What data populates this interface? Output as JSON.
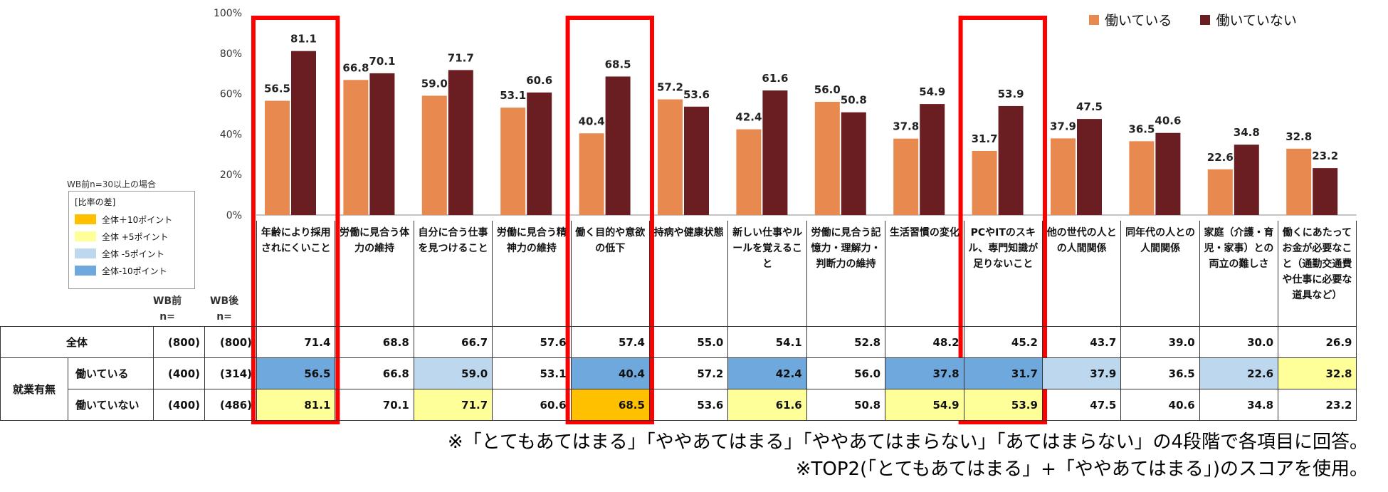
{
  "chart_data": {
    "type": "bar",
    "ylim": [
      0,
      100
    ],
    "yticks": [
      "0%",
      "20%",
      "40%",
      "60%",
      "80%",
      "100%"
    ],
    "legend": {
      "position": "top-right"
    },
    "colors": {
      "working": "#E8894F",
      "not_working": "#6B1E21"
    },
    "series": [
      {
        "name": "働いている",
        "values": [
          56.5,
          66.8,
          59.0,
          53.1,
          40.4,
          57.2,
          42.4,
          56.0,
          37.8,
          31.7,
          37.9,
          36.5,
          22.6,
          32.8
        ]
      },
      {
        "name": "働いていない",
        "values": [
          81.1,
          70.1,
          71.7,
          60.6,
          68.5,
          53.6,
          61.6,
          50.8,
          54.9,
          53.9,
          47.5,
          40.6,
          34.8,
          23.2
        ]
      }
    ],
    "categories": [
      "年齢により採用されにくいこと",
      "労働に見合う体力の維持",
      "自分に合う仕事を見つけること",
      "労働に見合う精神力の維持",
      "働く目的や意欲の低下",
      "持病や健康状態",
      "新しい仕事やルールを覚えること",
      "労働に見合う記憶力・理解力・判断力の維持",
      "生活習慣の変化",
      "PCやITのスキル、専門知識が足りないこと",
      "他の世代の人との人間関係",
      "同年代の人との人間関係",
      "家庭（介護・育児・家事）との両立の難しさ",
      "働くにあたってお金が必要なこと（通勤交通費や仕事に必要な道具など）"
    ],
    "highlighted_categories": [
      0,
      4,
      9
    ]
  },
  "legend_box": {
    "note": "WB前n=30以上の場合",
    "title": "[比率の差]",
    "items": [
      {
        "label": "全体＋10ポイント",
        "color": "#FFC000"
      },
      {
        "label": "全体 +5ポイント",
        "color": "#FFFF99"
      },
      {
        "label": "全体 -5ポイント",
        "color": "#BDD7EE"
      },
      {
        "label": "全体-10ポイント",
        "color": "#6FA8DC"
      }
    ]
  },
  "table": {
    "header_wb_before": "WB前",
    "header_wb_before_n": "n=",
    "header_wb_after": "WB後",
    "header_wb_after_n": "n=",
    "group_label": "就業有無",
    "rows": [
      {
        "label": "全体",
        "wb_before": "(800)",
        "wb_after": "(800)",
        "values": [
          "71.4",
          "68.8",
          "66.7",
          "57.6",
          "57.4",
          "55.0",
          "54.1",
          "52.8",
          "48.2",
          "45.2",
          "43.7",
          "39.0",
          "30.0",
          "26.9"
        ],
        "fills": [
          "",
          "",
          "",
          "",
          "",
          "",
          "",
          "",
          "",
          "",
          "",
          "",
          "",
          ""
        ]
      },
      {
        "label": "働いている",
        "wb_before": "(400)",
        "wb_after": "(314)",
        "values": [
          "56.5",
          "66.8",
          "59.0",
          "53.1",
          "40.4",
          "57.2",
          "42.4",
          "56.0",
          "37.8",
          "31.7",
          "37.9",
          "36.5",
          "22.6",
          "32.8"
        ],
        "fills": [
          "#6FA8DC",
          "",
          "#BDD7EE",
          "",
          "#6FA8DC",
          "",
          "#6FA8DC",
          "",
          "#6FA8DC",
          "#6FA8DC",
          "#BDD7EE",
          "",
          "#BDD7EE",
          "#FFFF99"
        ]
      },
      {
        "label": "働いていない",
        "wb_before": "(400)",
        "wb_after": "(486)",
        "values": [
          "81.1",
          "70.1",
          "71.7",
          "60.6",
          "68.5",
          "53.6",
          "61.6",
          "50.8",
          "54.9",
          "53.9",
          "47.5",
          "40.6",
          "34.8",
          "23.2"
        ],
        "fills": [
          "#FFFF99",
          "",
          "#FFFF99",
          "",
          "#FFC000",
          "",
          "#FFFF99",
          "",
          "#FFFF99",
          "#FFFF99",
          "",
          "",
          "",
          ""
        ]
      }
    ]
  },
  "notes": [
    "※「とてもあてはまる」「ややあてはまる」「ややあてはまらない」「あてはまらない」の4段階で各項目に回答。",
    "※TOP2(「とてもあてはまる」+「ややあてはまる」)のスコアを使用。"
  ],
  "highlight_color": "#FF0000"
}
